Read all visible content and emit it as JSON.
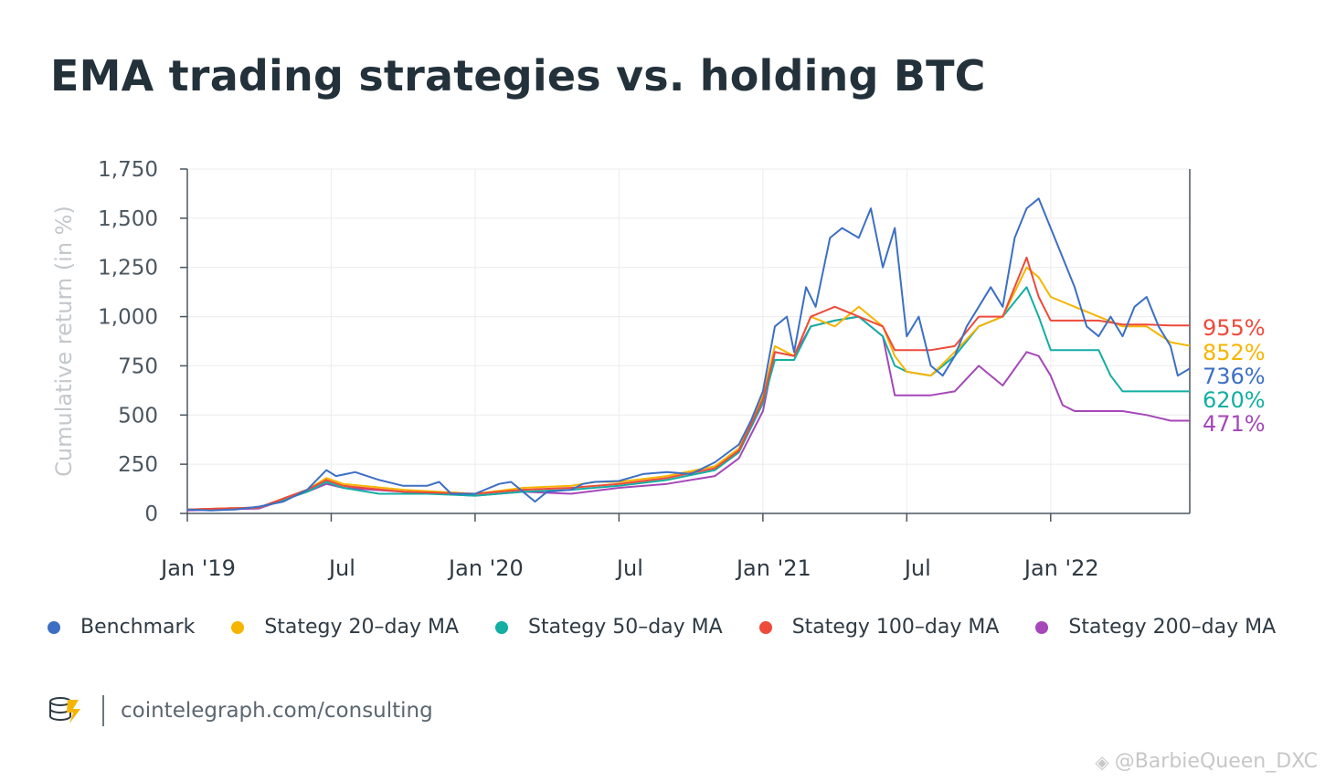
{
  "title": "EMA trading strategies vs. holding BTC",
  "source": "cointelegraph.com/consulting",
  "watermark": "@BarbieQueen_DXC",
  "chart_data": {
    "type": "line",
    "ylabel": "Cumulative return (in %)",
    "ylim": [
      0,
      1750
    ],
    "yticks": [
      0,
      250,
      500,
      750,
      1000,
      1250,
      1500,
      1750
    ],
    "ytick_labels": [
      "0",
      "250",
      "500",
      "750",
      "1,000",
      "1,250",
      "1,500",
      "1,750"
    ],
    "xlim": [
      0,
      41.8
    ],
    "xticks": [
      0,
      6,
      12,
      18,
      24,
      30,
      36
    ],
    "xtick_labels": [
      "Jan '19",
      "Jul",
      "Jan '20",
      "Jul",
      "Jan '21",
      "Jul",
      "Jan '22"
    ],
    "x_unit_note": "months since Jan 2019",
    "grid": true,
    "legend_position": "bottom",
    "series": [
      {
        "name": "Benchmark",
        "color": "#3c6fc4",
        "end_label": "736%",
        "points": [
          [
            0,
            20
          ],
          [
            1,
            15
          ],
          [
            2,
            20
          ],
          [
            3,
            35
          ],
          [
            4,
            60
          ],
          [
            5,
            120
          ],
          [
            5.8,
            220
          ],
          [
            6.2,
            190
          ],
          [
            7,
            210
          ],
          [
            8,
            170
          ],
          [
            9,
            140
          ],
          [
            10,
            140
          ],
          [
            10.5,
            160
          ],
          [
            11,
            100
          ],
          [
            12,
            100
          ],
          [
            13,
            150
          ],
          [
            13.5,
            160
          ],
          [
            14,
            110
          ],
          [
            14.5,
            60
          ],
          [
            15,
            110
          ],
          [
            16,
            120
          ],
          [
            16.5,
            150
          ],
          [
            17,
            160
          ],
          [
            18,
            165
          ],
          [
            19,
            200
          ],
          [
            20,
            210
          ],
          [
            21,
            200
          ],
          [
            22,
            260
          ],
          [
            23,
            350
          ],
          [
            23.5,
            470
          ],
          [
            24,
            620
          ],
          [
            24.5,
            950
          ],
          [
            25,
            1000
          ],
          [
            25.3,
            820
          ],
          [
            25.8,
            1150
          ],
          [
            26.2,
            1050
          ],
          [
            26.8,
            1400
          ],
          [
            27.3,
            1450
          ],
          [
            28,
            1400
          ],
          [
            28.5,
            1550
          ],
          [
            29,
            1250
          ],
          [
            29.5,
            1450
          ],
          [
            30,
            900
          ],
          [
            30.5,
            1000
          ],
          [
            31,
            750
          ],
          [
            31.5,
            700
          ],
          [
            32,
            800
          ],
          [
            32.5,
            950
          ],
          [
            33,
            1050
          ],
          [
            33.5,
            1150
          ],
          [
            34,
            1050
          ],
          [
            34.5,
            1400
          ],
          [
            35,
            1550
          ],
          [
            35.5,
            1600
          ],
          [
            36,
            1450
          ],
          [
            36.5,
            1300
          ],
          [
            37,
            1150
          ],
          [
            37.5,
            950
          ],
          [
            38,
            900
          ],
          [
            38.5,
            1000
          ],
          [
            39,
            900
          ],
          [
            39.5,
            1050
          ],
          [
            40,
            1100
          ],
          [
            40.5,
            950
          ],
          [
            41,
            850
          ],
          [
            41.3,
            700
          ],
          [
            41.8,
            736
          ]
        ]
      },
      {
        "name": "Stategy 20–day MA",
        "color": "#f6b500",
        "end_label": "852%",
        "points": [
          [
            0,
            20
          ],
          [
            3,
            30
          ],
          [
            5,
            120
          ],
          [
            5.8,
            180
          ],
          [
            6.5,
            150
          ],
          [
            9,
            120
          ],
          [
            12,
            100
          ],
          [
            14,
            130
          ],
          [
            16,
            140
          ],
          [
            17,
            160
          ],
          [
            18,
            160
          ],
          [
            20,
            190
          ],
          [
            22,
            240
          ],
          [
            23,
            330
          ],
          [
            24,
            600
          ],
          [
            24.5,
            850
          ],
          [
            25.3,
            800
          ],
          [
            26,
            1000
          ],
          [
            27,
            950
          ],
          [
            28,
            1050
          ],
          [
            29,
            950
          ],
          [
            29.5,
            800
          ],
          [
            30,
            720
          ],
          [
            31,
            700
          ],
          [
            32,
            820
          ],
          [
            33,
            950
          ],
          [
            34,
            1000
          ],
          [
            35,
            1250
          ],
          [
            35.5,
            1200
          ],
          [
            36,
            1100
          ],
          [
            37,
            1050
          ],
          [
            38,
            1000
          ],
          [
            39,
            950
          ],
          [
            40,
            950
          ],
          [
            41,
            870
          ],
          [
            41.8,
            852
          ]
        ]
      },
      {
        "name": "Stategy 50–day MA",
        "color": "#13aea4",
        "end_label": "620%",
        "points": [
          [
            0,
            20
          ],
          [
            3,
            30
          ],
          [
            5,
            110
          ],
          [
            5.8,
            160
          ],
          [
            6.5,
            130
          ],
          [
            8,
            100
          ],
          [
            10,
            100
          ],
          [
            12,
            90
          ],
          [
            14,
            110
          ],
          [
            16,
            120
          ],
          [
            18,
            140
          ],
          [
            20,
            170
          ],
          [
            22,
            220
          ],
          [
            23,
            310
          ],
          [
            24,
            560
          ],
          [
            24.5,
            780
          ],
          [
            25.3,
            780
          ],
          [
            26,
            950
          ],
          [
            27,
            980
          ],
          [
            28,
            1000
          ],
          [
            29,
            900
          ],
          [
            29.5,
            750
          ],
          [
            30,
            720
          ],
          [
            31,
            700
          ],
          [
            32,
            800
          ],
          [
            33,
            950
          ],
          [
            34,
            1000
          ],
          [
            35,
            1150
          ],
          [
            35.5,
            1000
          ],
          [
            36,
            830
          ],
          [
            37,
            830
          ],
          [
            38,
            830
          ],
          [
            38.5,
            700
          ],
          [
            39,
            620
          ],
          [
            40,
            620
          ],
          [
            41,
            620
          ],
          [
            41.8,
            620
          ]
        ]
      },
      {
        "name": "Stategy 100–day MA",
        "color": "#ee4a3a",
        "end_label": "955%",
        "points": [
          [
            0,
            20
          ],
          [
            3,
            30
          ],
          [
            5,
            120
          ],
          [
            5.8,
            170
          ],
          [
            6.5,
            140
          ],
          [
            9,
            110
          ],
          [
            12,
            100
          ],
          [
            14,
            120
          ],
          [
            16,
            130
          ],
          [
            18,
            150
          ],
          [
            20,
            180
          ],
          [
            22,
            230
          ],
          [
            23,
            320
          ],
          [
            24,
            580
          ],
          [
            24.5,
            820
          ],
          [
            25.3,
            800
          ],
          [
            26,
            1000
          ],
          [
            27,
            1050
          ],
          [
            28,
            1000
          ],
          [
            29,
            950
          ],
          [
            29.5,
            830
          ],
          [
            30,
            830
          ],
          [
            31,
            830
          ],
          [
            32,
            850
          ],
          [
            33,
            1000
          ],
          [
            34,
            1000
          ],
          [
            35,
            1300
          ],
          [
            35.5,
            1100
          ],
          [
            36,
            980
          ],
          [
            37,
            980
          ],
          [
            38,
            980
          ],
          [
            39,
            960
          ],
          [
            40,
            960
          ],
          [
            41,
            955
          ],
          [
            41.8,
            955
          ]
        ]
      },
      {
        "name": "Stategy 200–day MA",
        "color": "#a547b8",
        "end_label": "471%",
        "points": [
          [
            0,
            15
          ],
          [
            3,
            25
          ],
          [
            5,
            110
          ],
          [
            5.8,
            150
          ],
          [
            6.5,
            130
          ],
          [
            9,
            110
          ],
          [
            12,
            90
          ],
          [
            14,
            110
          ],
          [
            16,
            100
          ],
          [
            18,
            130
          ],
          [
            20,
            150
          ],
          [
            22,
            190
          ],
          [
            23,
            280
          ],
          [
            24,
            520
          ],
          [
            24.5,
            820
          ],
          [
            25.3,
            800
          ],
          [
            26,
            950
          ],
          [
            27,
            980
          ],
          [
            28,
            1000
          ],
          [
            29,
            900
          ],
          [
            29.5,
            600
          ],
          [
            30,
            600
          ],
          [
            31,
            600
          ],
          [
            32,
            620
          ],
          [
            33,
            750
          ],
          [
            34,
            650
          ],
          [
            35,
            820
          ],
          [
            35.5,
            800
          ],
          [
            36,
            700
          ],
          [
            36.5,
            550
          ],
          [
            37,
            520
          ],
          [
            38,
            520
          ],
          [
            39,
            520
          ],
          [
            40,
            500
          ],
          [
            41,
            471
          ],
          [
            41.8,
            471
          ]
        ]
      }
    ]
  }
}
